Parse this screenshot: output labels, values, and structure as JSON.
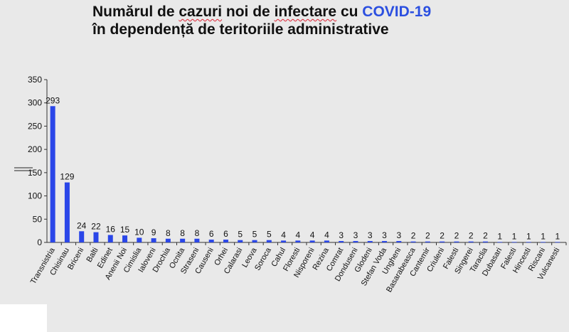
{
  "title": {
    "line1_a": "Numărul de ",
    "line1_b": "cazuri",
    "line1_c": " noi de ",
    "line1_d": "infectare",
    "line1_e": " cu ",
    "line1_highlight": "COVID-19",
    "line2": "în dependență de teritoriile administrative",
    "highlight_color": "#2b4fe0"
  },
  "chart_data": {
    "type": "bar",
    "categories": [
      "Transnistria",
      "Chisinau",
      "Briceni",
      "Balti",
      "Edinet",
      "Anenii Noi",
      "Cimislia",
      "Ialoveni",
      "Drochia",
      "Ocnita",
      "Straseni",
      "Causeni",
      "Orhei",
      "Calarasi",
      "Leova",
      "Soroca",
      "Cahul",
      "Floresti",
      "Nisporeni",
      "Rezina",
      "Comrat",
      "Donduseni",
      "Glodeni",
      "Stefan Voda",
      "Ungheni",
      "Basarabeasca",
      "Cantemir",
      "Criuleni",
      "Falesti",
      "Singerei",
      "Taraclia",
      "Dubasari",
      "Falesti",
      "Hincesti",
      "Riscani",
      "Vulcanesti"
    ],
    "values": [
      293,
      129,
      24,
      22,
      16,
      15,
      10,
      9,
      8,
      8,
      8,
      6,
      6,
      5,
      5,
      5,
      4,
      4,
      4,
      4,
      3,
      3,
      3,
      3,
      3,
      2,
      2,
      2,
      2,
      2,
      2,
      1,
      1,
      1,
      1,
      1
    ],
    "y_ticks": [
      "0",
      "50",
      "100",
      "150",
      "200",
      "250",
      "300",
      "350"
    ],
    "ylim": [
      0,
      350
    ],
    "bar_color": "#2a46e8",
    "grid": false,
    "legend": "none"
  }
}
